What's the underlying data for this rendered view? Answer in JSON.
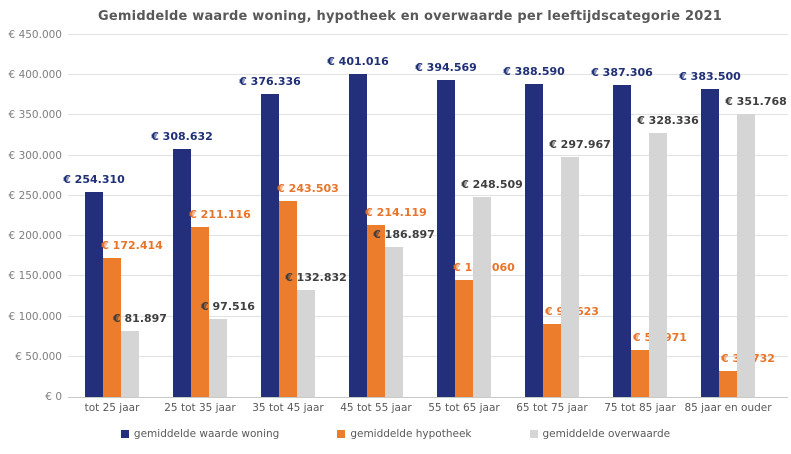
{
  "chart_data": {
    "type": "bar",
    "title": "Gemiddelde waarde woning, hypotheek en overwaarde per leeftijdscategorie 2021",
    "categories": [
      "tot 25 jaar",
      "25 tot 35 jaar",
      "35 tot 45 jaar",
      "45 tot 55 jaar",
      "55 tot 65 jaar",
      "65 tot 75 jaar",
      "75 tot 85 jaar",
      "85 jaar en ouder"
    ],
    "series": [
      {
        "key": "woning",
        "name": "gemiddelde waarde woning",
        "color": "#242f7b",
        "label_color": "#1f3076",
        "values": [
          254310,
          308632,
          376336,
          401016,
          394569,
          388590,
          387306,
          383500
        ]
      },
      {
        "key": "hypotheek",
        "name": "gemiddelde hypotheek",
        "color": "#ec7d2d",
        "label_color": "#e8752b",
        "values": [
          172414,
          211116,
          243503,
          214119,
          146060,
          90623,
          58971,
          31732
        ]
      },
      {
        "key": "overwaarde",
        "name": "gemiddelde overwaarde",
        "color": "#d5d5d5",
        "label_color": "#3f3f3f",
        "values": [
          81897,
          97516,
          132832,
          186897,
          248509,
          297967,
          328336,
          351768
        ]
      }
    ],
    "ylim": [
      0,
      450000
    ],
    "ytick_step": 50000,
    "ytick_labels": [
      "€ 0",
      "€ 50.000",
      "€ 100.000",
      "€ 150.000",
      "€ 200.000",
      "€ 250.000",
      "€ 300.000",
      "€ 350.000",
      "€ 400.000",
      "€ 450.000"
    ],
    "value_prefix": "€ ",
    "grid": true,
    "legend_position": "bottom",
    "title_color": "#595959",
    "axis_tick_color": "#7f7f7f",
    "category_label_color": "#595959",
    "gridline_color": "#e2e2e2"
  }
}
